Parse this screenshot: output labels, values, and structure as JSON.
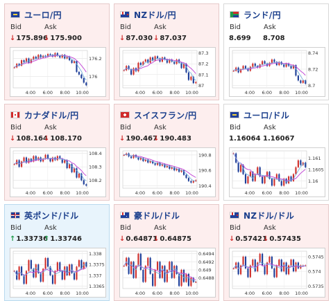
{
  "colors": {
    "up_candle": "#d0312d",
    "down_candle": "#1f3f99",
    "ma_line": "#c44fd8",
    "ma_line2": "#6aa8d8",
    "arrow_down": "#d12b2b",
    "arrow_up": "#1f9a4a"
  },
  "pairs": [
    {
      "name": "ユーロ/円",
      "flag_icon": "eu-flag-icon",
      "trend": "down",
      "bid_label": "Bid",
      "ask_label": "Ask",
      "bid": "175.896",
      "ask": "175.900",
      "chart_data": {
        "type": "candlestick",
        "x_labels": [
          "4:00",
          "6:00",
          "8:00",
          "10:00"
        ],
        "y_labels": [
          "176.2",
          "176"
        ],
        "closes": [
          176.1,
          176.14,
          176.12,
          176.18,
          176.16,
          176.2,
          176.15,
          176.19,
          176.22,
          176.2,
          176.24,
          176.21,
          176.23,
          176.22,
          176.25,
          176.24,
          176.22,
          176.26,
          176.23,
          176.21,
          176.24,
          176.2,
          176.22,
          176.18,
          176.15,
          176.17,
          176.05,
          176.02,
          175.98,
          175.93,
          175.9
        ]
      }
    },
    {
      "name": "NZドル/円",
      "flag_icon": "nz-flag-icon",
      "trend": "down",
      "bid_label": "Bid",
      "ask_label": "Ask",
      "bid": "87.030",
      "ask": "87.037",
      "chart_data": {
        "type": "candlestick",
        "x_labels": [
          "4:00",
          "6:00",
          "8:00",
          "10:00"
        ],
        "y_labels": [
          "87.3",
          "87.2",
          "87.1",
          "87"
        ],
        "closes": [
          87.14,
          87.18,
          87.15,
          87.1,
          87.16,
          87.13,
          87.21,
          87.19,
          87.22,
          87.24,
          87.21,
          87.26,
          87.23,
          87.27,
          87.25,
          87.22,
          87.26,
          87.24,
          87.21,
          87.24,
          87.22,
          87.2,
          87.24,
          87.21,
          87.16,
          87.2,
          87.12,
          87.05,
          87.08,
          87.02,
          87.03
        ]
      }
    },
    {
      "name": "ランド/円",
      "flag_icon": "za-flag-icon",
      "trend": "flat",
      "bid_label": "Bid",
      "ask_label": "Ask",
      "bid": "8.699",
      "ask": "8.708",
      "chart_data": {
        "type": "candlestick",
        "x_labels": [
          "4:00",
          "6:00",
          "8:00",
          "10:00"
        ],
        "y_labels": [
          "8.74",
          "8.72",
          "8.7"
        ],
        "closes": [
          8.718,
          8.722,
          8.716,
          8.72,
          8.724,
          8.721,
          8.718,
          8.723,
          8.727,
          8.724,
          8.722,
          8.726,
          8.73,
          8.727,
          8.724,
          8.728,
          8.732,
          8.729,
          8.725,
          8.729,
          8.726,
          8.723,
          8.727,
          8.724,
          8.721,
          8.725,
          8.712,
          8.706,
          8.703,
          8.706,
          8.702
        ]
      }
    },
    {
      "name": "カナダドル/円",
      "flag_icon": "ca-flag-icon",
      "trend": "down",
      "bid_label": "Bid",
      "ask_label": "Ask",
      "bid": "108.164",
      "ask": "108.170",
      "chart_data": {
        "type": "candlestick",
        "x_labels": [
          "4:00",
          "6:00",
          "8:00",
          "10:00"
        ],
        "y_labels": [
          "108.4",
          "108.3",
          "108.2"
        ],
        "closes": [
          108.32,
          108.35,
          108.3,
          108.34,
          108.37,
          108.33,
          108.36,
          108.34,
          108.38,
          108.35,
          108.37,
          108.34,
          108.36,
          108.39,
          108.36,
          108.34,
          108.37,
          108.35,
          108.38,
          108.36,
          108.33,
          108.35,
          108.29,
          108.32,
          108.26,
          108.29,
          108.22,
          108.25,
          108.2,
          108.17,
          108.16
        ]
      }
    },
    {
      "name": "スイスフラン/円",
      "flag_icon": "ch-flag-icon",
      "trend": "down",
      "bid_label": "Bid",
      "ask_label": "Ask",
      "bid": "190.467",
      "ask": "190.483",
      "chart_data": {
        "type": "candlestick",
        "x_labels": [
          "4:00",
          "6:00",
          "8:00",
          "10:00"
        ],
        "y_labels": [
          "190.8",
          "190.6",
          "190.4"
        ],
        "closes": [
          190.8,
          190.82,
          190.78,
          190.76,
          190.8,
          190.77,
          190.74,
          190.76,
          190.72,
          190.74,
          190.7,
          190.72,
          190.69,
          190.67,
          190.7,
          190.66,
          190.68,
          190.64,
          190.66,
          190.62,
          190.64,
          190.6,
          190.62,
          190.58,
          190.6,
          190.54,
          190.5,
          190.46,
          190.44,
          190.46,
          190.47
        ]
      }
    },
    {
      "name": "ユーロ/ドル",
      "flag_icon": "eu-flag-icon",
      "trend": "flat",
      "bid_label": "Bid",
      "ask_label": "Ask",
      "bid": "1.16064",
      "ask": "1.16067",
      "chart_data": {
        "type": "candlestick",
        "x_labels": [
          "4:00",
          "6:00",
          "8:00",
          "10:00"
        ],
        "y_labels": [
          "1.161",
          "1.1605",
          "1.16"
        ],
        "closes": [
          1.1612,
          1.1608,
          1.1604,
          1.1607,
          1.1603,
          1.1599,
          1.1602,
          1.1604,
          1.16,
          1.1603,
          1.1606,
          1.1602,
          1.1599,
          1.1602,
          1.1604,
          1.1601,
          1.1598,
          1.1601,
          1.1603,
          1.16,
          1.1598,
          1.1601,
          1.1599,
          1.1602,
          1.16,
          1.1603,
          1.1606,
          1.1609,
          1.1607,
          1.1608,
          1.1606
        ]
      }
    },
    {
      "name": "英ポンド/ドル",
      "flag_icon": "gb-flag-icon",
      "trend": "up",
      "bid_label": "Bid",
      "ask_label": "Ask",
      "bid": "1.33736",
      "ask": "1.33746",
      "chart_data": {
        "type": "candlestick",
        "x_labels": [
          "4:00",
          "6:00",
          "8:00",
          "10:00"
        ],
        "y_labels": [
          "1.338",
          "1.3375",
          "1.337",
          "1.3365"
        ],
        "closes": [
          1.3372,
          1.3368,
          1.3374,
          1.337,
          1.3366,
          1.3372,
          1.3377,
          1.3373,
          1.3369,
          1.3375,
          1.3371,
          1.3367,
          1.3373,
          1.3378,
          1.3374,
          1.337,
          1.3366,
          1.3372,
          1.3376,
          1.3372,
          1.3368,
          1.3374,
          1.337,
          1.3375,
          1.3371,
          1.3368,
          1.3374,
          1.3377,
          1.3373,
          1.3376,
          1.3374
        ]
      }
    },
    {
      "name": "豪ドル/ドル",
      "flag_icon": "au-flag-icon",
      "trend": "down",
      "bid_label": "Bid",
      "ask_label": "Ask",
      "bid": "0.64871",
      "ask": "0.64875",
      "chart_data": {
        "type": "candlestick",
        "x_labels": [
          "4:00",
          "6:00",
          "8:00",
          "10:00"
        ],
        "y_labels": [
          "0.6494",
          "0.6492",
          "0.649",
          "0.6488"
        ],
        "closes": [
          0.6491,
          0.6493,
          0.6489,
          0.6492,
          0.6488,
          0.6491,
          0.6494,
          0.649,
          0.6487,
          0.6491,
          0.6493,
          0.6489,
          0.6486,
          0.649,
          0.6492,
          0.6488,
          0.6491,
          0.6487,
          0.649,
          0.6492,
          0.6488,
          0.6491,
          0.6489,
          0.6486,
          0.649,
          0.6487,
          0.6489,
          0.6486,
          0.6488,
          0.6487,
          0.6487
        ]
      }
    },
    {
      "name": "NZドル/ドル",
      "flag_icon": "nz-flag-icon",
      "trend": "down",
      "bid_label": "Bid",
      "ask_label": "Ask",
      "bid": "0.57421",
      "ask": "0.57435",
      "chart_data": {
        "type": "candlestick",
        "x_labels": [
          "4:00",
          "6:00",
          "8:00",
          "10:00"
        ],
        "y_labels": [
          "0.5745",
          "0.574",
          "0.5735"
        ],
        "closes": [
          0.5741,
          0.5743,
          0.5739,
          0.5742,
          0.5745,
          0.5741,
          0.5738,
          0.5742,
          0.5744,
          0.574,
          0.5743,
          0.5746,
          0.5742,
          0.5739,
          0.5743,
          0.5745,
          0.5741,
          0.5738,
          0.5742,
          0.5744,
          0.574,
          0.5743,
          0.5739,
          0.5742,
          0.5744,
          0.574,
          0.5743,
          0.5741,
          0.5742,
          0.5742,
          0.5742
        ]
      }
    }
  ]
}
